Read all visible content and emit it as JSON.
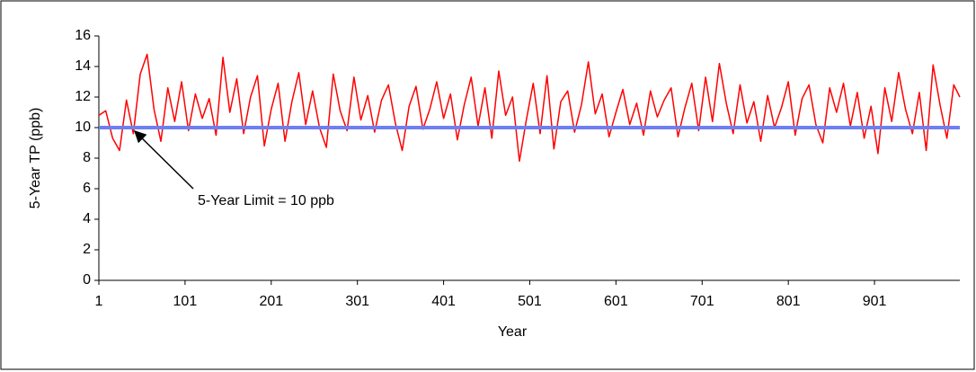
{
  "chart_data": {
    "type": "line",
    "x_label": "Year",
    "y_label": "5-Year TP (ppb)",
    "x": [
      1,
      9,
      17,
      25,
      33,
      41,
      49,
      57,
      65,
      73,
      81,
      89,
      97,
      105,
      113,
      121,
      129,
      137,
      145,
      153,
      161,
      169,
      177,
      185,
      193,
      201,
      209,
      217,
      225,
      233,
      241,
      249,
      257,
      265,
      273,
      281,
      289,
      297,
      305,
      313,
      321,
      329,
      337,
      345,
      353,
      361,
      369,
      377,
      385,
      393,
      401,
      409,
      417,
      425,
      433,
      441,
      449,
      457,
      465,
      473,
      481,
      489,
      497,
      505,
      513,
      521,
      529,
      537,
      545,
      553,
      561,
      569,
      577,
      585,
      593,
      601,
      609,
      617,
      625,
      633,
      641,
      649,
      657,
      665,
      673,
      681,
      689,
      697,
      705,
      713,
      721,
      729,
      737,
      745,
      753,
      761,
      769,
      777,
      785,
      793,
      801,
      809,
      817,
      825,
      833,
      841,
      849,
      857,
      865,
      873,
      881,
      889,
      897,
      905,
      913,
      921,
      929,
      937,
      945,
      953,
      961,
      969,
      977,
      985,
      993,
      1000
    ],
    "series": [
      {
        "color": "#ff0000",
        "values": [
          10.8,
          11.1,
          9.3,
          8.5,
          11.8,
          9.6,
          13.5,
          14.8,
          11.2,
          9.1,
          12.6,
          10.4,
          13.0,
          9.8,
          12.2,
          10.6,
          11.9,
          9.5,
          14.6,
          11.0,
          13.2,
          9.6,
          12.0,
          13.4,
          8.8,
          11.2,
          12.9,
          9.1,
          11.7,
          13.6,
          10.2,
          12.4,
          10.0,
          8.7,
          13.5,
          11.1,
          9.8,
          13.3,
          10.5,
          12.1,
          9.7,
          11.8,
          12.8,
          10.3,
          8.5,
          11.4,
          12.7,
          9.9,
          11.2,
          13.0,
          10.6,
          12.2,
          9.2,
          11.5,
          13.3,
          10.1,
          12.6,
          9.3,
          13.7,
          10.8,
          12.0,
          7.8,
          10.5,
          12.9,
          9.6,
          13.4,
          8.6,
          11.7,
          12.4,
          9.7,
          11.5,
          14.3,
          10.9,
          12.2,
          9.4,
          11.0,
          12.5,
          10.2,
          11.6,
          9.5,
          12.4,
          10.7,
          11.8,
          12.6,
          9.4,
          11.3,
          12.9,
          9.8,
          13.3,
          10.4,
          14.2,
          11.6,
          9.6,
          12.8,
          10.3,
          11.7,
          9.1,
          12.1,
          10.0,
          11.3,
          13.0,
          9.5,
          11.9,
          12.8,
          10.2,
          9.0,
          12.6,
          11.0,
          12.9,
          10.1,
          12.3,
          9.3,
          11.4,
          8.3,
          12.6,
          10.4,
          13.6,
          11.2,
          9.6,
          12.3,
          8.5,
          14.1,
          11.5,
          9.3,
          12.8,
          12.0
        ]
      }
    ],
    "reference_line": {
      "value": 10,
      "color": "#6f7fef"
    },
    "annotation": "5-Year Limit = 10 ppb",
    "xlim": [
      1,
      1000
    ],
    "xticks": [
      1,
      101,
      201,
      301,
      401,
      501,
      601,
      701,
      801,
      901
    ],
    "ylim": [
      0,
      16
    ],
    "yticks": [
      0,
      2,
      4,
      6,
      8,
      10,
      12,
      14,
      16
    ]
  }
}
